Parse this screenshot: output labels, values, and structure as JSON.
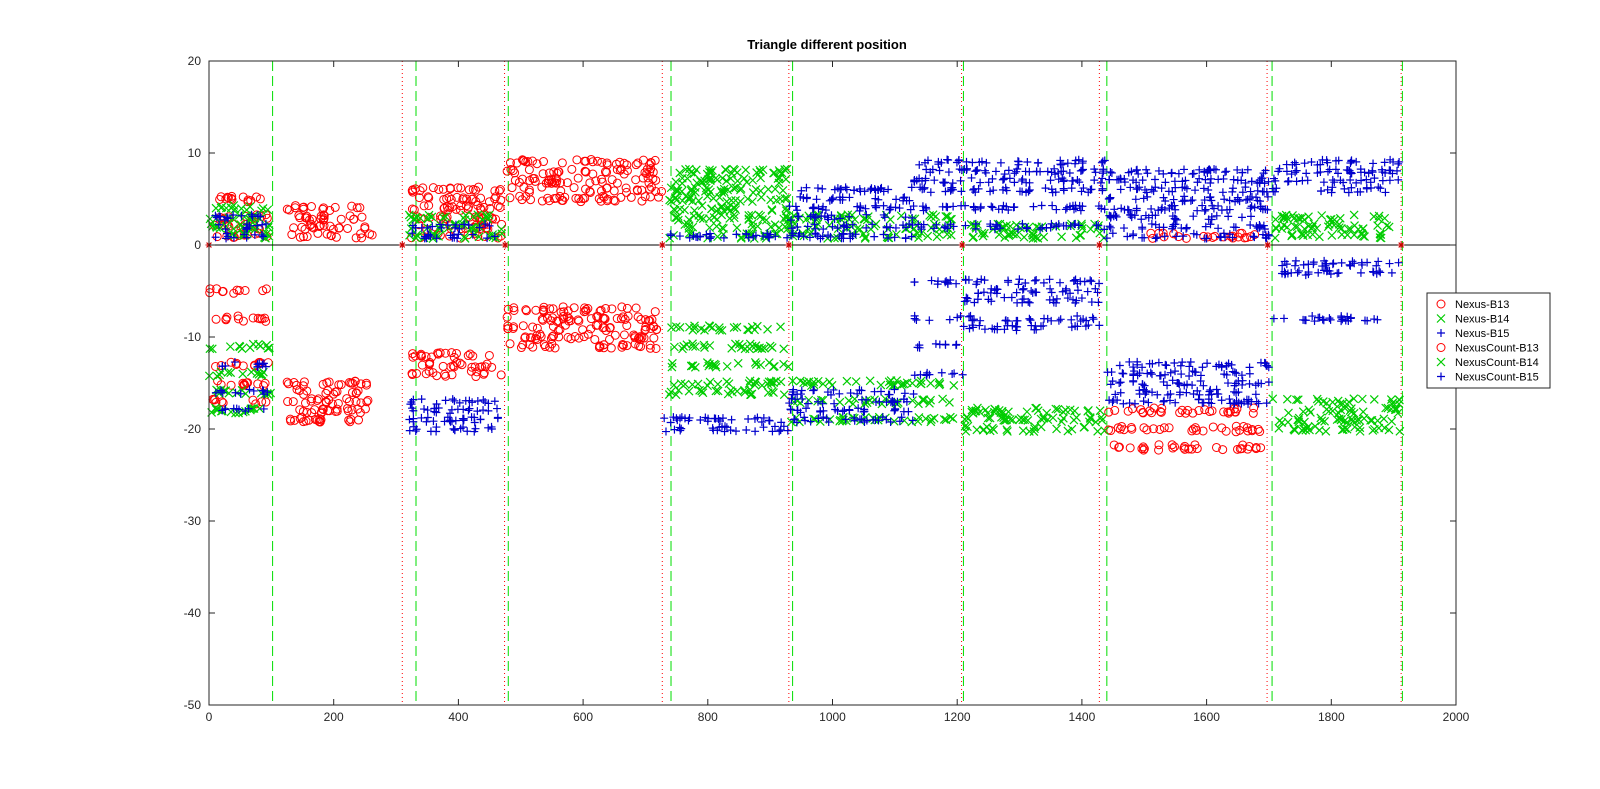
{
  "chart_data": {
    "type": "scatter",
    "title": "Triangle different position",
    "xlabel": "",
    "ylabel": "",
    "xlim": [
      0,
      2000
    ],
    "ylim": [
      -50,
      20
    ],
    "xticks": [
      0,
      200,
      400,
      600,
      800,
      1000,
      1200,
      1400,
      1600,
      1800,
      2000
    ],
    "yticks": [
      20,
      10,
      0,
      -10,
      -20,
      -30,
      -40,
      -50
    ],
    "grid": false,
    "legend_position": "right",
    "zero_line": {
      "y": 0,
      "color": "#000000"
    },
    "event_markers": {
      "marker": "*",
      "color": "#cc0000",
      "x": [
        0,
        310,
        475,
        727,
        930,
        1208,
        1428,
        1698,
        1912
      ]
    },
    "vertical_lines": [
      {
        "style": "dotted",
        "color": "#ff0000",
        "x": [
          310,
          474,
          727,
          930,
          1207,
          1428,
          1697,
          1912
        ]
      },
      {
        "style": "dashed",
        "color": "#00dd00",
        "x": [
          102,
          332,
          480,
          741,
          936,
          1210,
          1440,
          1705,
          1914
        ]
      }
    ],
    "series": [
      {
        "name": "Nexus-B13",
        "marker": "o",
        "color": "#ff0000",
        "segments": [
          {
            "x": [
              0,
              95
            ],
            "levels": [
              1,
              2,
              3,
              5
            ]
          },
          {
            "x": [
              125,
              262
            ],
            "levels": [
              1,
              2,
              3,
              4
            ]
          },
          {
            "x": [
              320,
              470
            ],
            "levels": [
              1,
              2,
              3,
              4,
              5,
              6
            ]
          },
          {
            "x": [
              478,
              726
            ],
            "levels": [
              5,
              6,
              7,
              8,
              9
            ]
          },
          {
            "x": [
              1510,
              1690
            ],
            "levels": [
              1
            ]
          }
        ]
      },
      {
        "name": "Nexus-B14",
        "marker": "x",
        "color": "#00cc00",
        "segments": [
          {
            "x": [
              0,
              100
            ],
            "levels": [
              1,
              2,
              3,
              4
            ]
          },
          {
            "x": [
              320,
              470
            ],
            "levels": [
              1,
              2,
              3
            ]
          },
          {
            "x": [
              738,
              930
            ],
            "levels": [
              1,
              2,
              3,
              4,
              5,
              6,
              7,
              8
            ]
          },
          {
            "x": [
              930,
              1200
            ],
            "levels": [
              1,
              2,
              3
            ]
          },
          {
            "x": [
              1210,
              1440
            ],
            "levels": [
              1,
              2
            ]
          },
          {
            "x": [
              1705,
              1905
            ],
            "levels": [
              1,
              2,
              3
            ]
          }
        ]
      },
      {
        "name": "Nexus-B15",
        "marker": "+",
        "color": "#0000cc",
        "segments": [
          {
            "x": [
              10,
              95
            ],
            "levels": [
              1,
              2,
              3
            ]
          },
          {
            "x": [
              320,
              470
            ],
            "levels": [
              1,
              2
            ]
          },
          {
            "x": [
              730,
              930
            ],
            "levels": [
              1
            ]
          },
          {
            "x": [
              930,
              1130
            ],
            "levels": [
              1,
              2,
              3,
              4,
              5,
              6
            ]
          },
          {
            "x": [
              1130,
              1440
            ],
            "levels": [
              2,
              4,
              6,
              7,
              8,
              9
            ]
          },
          {
            "x": [
              1440,
              1700
            ],
            "levels": [
              1,
              2,
              3,
              4,
              5,
              6,
              7,
              8
            ]
          },
          {
            "x": [
              1705,
              1912
            ],
            "levels": [
              6,
              7,
              8,
              9
            ]
          }
        ]
      },
      {
        "name": "NexusCount-B13",
        "marker": "o",
        "color": "#ff0000",
        "segments": [
          {
            "x": [
              0,
              95
            ],
            "levels": [
              -5,
              -8,
              -13,
              -15,
              -17
            ]
          },
          {
            "x": [
              125,
              262
            ],
            "levels": [
              -15,
              -16,
              -17,
              -18,
              -19
            ]
          },
          {
            "x": [
              320,
              470
            ],
            "levels": [
              -12,
              -13,
              -14
            ]
          },
          {
            "x": [
              478,
              726
            ],
            "levels": [
              -7,
              -8,
              -9,
              -10,
              -11
            ]
          },
          {
            "x": [
              1440,
              1690
            ],
            "levels": [
              -18,
              -20,
              -22
            ]
          }
        ]
      },
      {
        "name": "NexusCount-B14",
        "marker": "x",
        "color": "#00cc00",
        "segments": [
          {
            "x": [
              0,
              100
            ],
            "levels": [
              -11,
              -14,
              -16,
              -18
            ]
          },
          {
            "x": [
              738,
              930
            ],
            "levels": [
              -9,
              -11,
              -13,
              -15,
              -16
            ]
          },
          {
            "x": [
              930,
              1200
            ],
            "levels": [
              -15,
              -17,
              -19
            ]
          },
          {
            "x": [
              1210,
              1440
            ],
            "levels": [
              -18,
              -19,
              -20
            ]
          },
          {
            "x": [
              1705,
              1912
            ],
            "levels": [
              -17,
              -18,
              -19,
              -20
            ]
          }
        ]
      },
      {
        "name": "NexusCount-B15",
        "marker": "+",
        "color": "#0000cc",
        "segments": [
          {
            "x": [
              10,
              95
            ],
            "levels": [
              -13,
              -16,
              -18
            ]
          },
          {
            "x": [
              320,
              470
            ],
            "levels": [
              -17,
              -18,
              -19,
              -20
            ]
          },
          {
            "x": [
              730,
              930
            ],
            "levels": [
              -19,
              -20
            ]
          },
          {
            "x": [
              930,
              1130
            ],
            "levels": [
              -16,
              -17,
              -18,
              -19
            ]
          },
          {
            "x": [
              1130,
              1210
            ],
            "levels": [
              -4,
              -8,
              -11,
              -14
            ]
          },
          {
            "x": [
              1210,
              1428
            ],
            "levels": [
              -4,
              -5,
              -6,
              -8,
              -9
            ]
          },
          {
            "x": [
              1440,
              1700
            ],
            "levels": [
              -13,
              -14,
              -15,
              -16,
              -17
            ]
          },
          {
            "x": [
              1700,
              1912
            ],
            "levels": [
              -2,
              -3,
              -8
            ]
          }
        ]
      }
    ]
  }
}
